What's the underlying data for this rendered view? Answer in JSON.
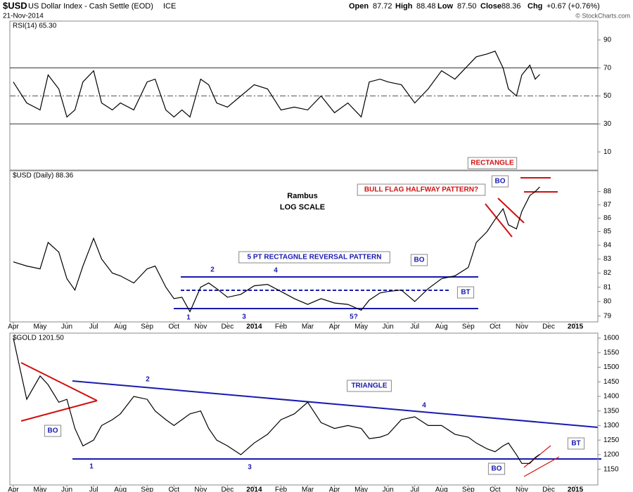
{
  "header": {
    "symbol": "$USD",
    "name": "US Dollar Index - Cash Settle (EOD)",
    "exchange": "ICE",
    "date": "21-Nov-2014",
    "quote": [
      {
        "label": "Open",
        "value": "87.72"
      },
      {
        "label": "High",
        "value": "88.48"
      },
      {
        "label": "Low",
        "value": "87.50"
      },
      {
        "label": "Close",
        "value": "88.36"
      },
      {
        "label": "Chg",
        "value": "+0.67 (+0.76%)"
      }
    ],
    "copyright": "© StockCharts.com"
  },
  "chart_data": [
    {
      "type": "line",
      "title": "RSI(14) 65.30",
      "color": "#000000",
      "x": [
        0,
        0.5,
        1,
        1.3,
        1.7,
        2,
        2.3,
        2.6,
        3,
        3.3,
        3.7,
        4,
        4.5,
        5,
        5.3,
        5.7,
        6,
        6.3,
        6.6,
        7,
        7.3,
        7.6,
        8,
        8.5,
        9,
        9.5,
        10,
        10.5,
        11,
        11.5,
        12,
        12.5,
        13,
        13.3,
        13.7,
        14,
        14.5,
        15,
        15.5,
        16,
        16.5,
        17,
        17.3,
        17.7,
        18,
        18.3,
        18.5,
        18.8,
        19,
        19.3,
        19.5,
        19.67
      ],
      "values": [
        60,
        45,
        40,
        65,
        55,
        35,
        40,
        60,
        68,
        45,
        40,
        45,
        40,
        60,
        62,
        40,
        35,
        40,
        35,
        62,
        58,
        45,
        42,
        50,
        58,
        55,
        40,
        42,
        40,
        50,
        38,
        45,
        35,
        60,
        62,
        60,
        58,
        45,
        55,
        68,
        62,
        72,
        78,
        80,
        82,
        70,
        55,
        50,
        65,
        72,
        62,
        65.3
      ],
      "xlim": [
        -0.13,
        21.84
      ],
      "ylim": [
        -3,
        103.5
      ],
      "yticks": [
        10,
        30,
        50,
        70,
        90
      ],
      "hlines": [
        30,
        50,
        70
      ]
    },
    {
      "type": "line",
      "title": "$USD (Daily) 88.36",
      "color": "#000000",
      "log": true,
      "x": [
        0,
        0.5,
        1,
        1.3,
        1.7,
        2,
        2.3,
        2.6,
        3,
        3.3,
        3.7,
        4,
        4.5,
        5,
        5.3,
        5.7,
        6,
        6.3,
        6.6,
        7,
        7.3,
        7.6,
        8,
        8.5,
        9,
        9.5,
        10,
        10.5,
        11,
        11.5,
        12,
        12.5,
        13,
        13.3,
        13.7,
        14,
        14.5,
        15,
        15.5,
        16,
        16.5,
        17,
        17.3,
        17.7,
        18,
        18.3,
        18.5,
        18.8,
        19,
        19.3,
        19.5,
        19.67
      ],
      "values": [
        82.8,
        82.5,
        82.3,
        84.2,
        83.5,
        81.6,
        80.8,
        82.5,
        84.5,
        83,
        82,
        81.8,
        81.3,
        82.3,
        82.5,
        81,
        80.2,
        80.3,
        79.3,
        81,
        81.3,
        80.9,
        80.3,
        80.5,
        81.1,
        81.2,
        80.7,
        80.2,
        79.8,
        80.2,
        79.9,
        79.8,
        79.4,
        80.1,
        80.6,
        80.7,
        80.8,
        80,
        80.9,
        81.6,
        81.8,
        82.4,
        84.2,
        85,
        85.9,
        86.7,
        85.5,
        85.2,
        86.5,
        87.7,
        88,
        88.36
      ],
      "xlim": [
        -0.13,
        21.84
      ],
      "ylim": [
        78.6,
        89.6
      ],
      "yticks": [
        79,
        80,
        81,
        82,
        83,
        84,
        85,
        86,
        87,
        88
      ],
      "xticks": [
        {
          "value": 0,
          "label": "Apr"
        },
        {
          "value": 1,
          "label": "May"
        },
        {
          "value": 2,
          "label": "Jun"
        },
        {
          "value": 3,
          "label": "Jul"
        },
        {
          "value": 4,
          "label": "Aug"
        },
        {
          "value": 5,
          "label": "Sep"
        },
        {
          "value": 6,
          "label": "Oct"
        },
        {
          "value": 7,
          "label": "Nov"
        },
        {
          "value": 8,
          "label": "Dec"
        },
        {
          "value": 9,
          "label": "2014"
        },
        {
          "value": 10,
          "label": "Feb"
        },
        {
          "value": 11,
          "label": "Mar"
        },
        {
          "value": 12,
          "label": "Apr"
        },
        {
          "value": 13,
          "label": "May"
        },
        {
          "value": 14,
          "label": "Jun"
        },
        {
          "value": 15,
          "label": "Jul"
        },
        {
          "value": 16,
          "label": "Aug"
        },
        {
          "value": 17,
          "label": "Sep"
        },
        {
          "value": 18,
          "label": "Oct"
        },
        {
          "value": 19,
          "label": "Nov"
        },
        {
          "value": 20,
          "label": "Dec"
        },
        {
          "value": 21,
          "label": "2015"
        }
      ],
      "annotations": [
        "Rambus",
        "LOG SCALE",
        "5 PT RECTAGNLE REVERSAL PATTERN",
        "BO",
        "BT",
        "BULL FLAG HALFWAY PATTERN?",
        "BO",
        "RECTANGLE",
        "1",
        "2",
        "3",
        "4",
        "5?"
      ]
    },
    {
      "type": "line",
      "title": "$GOLD 1201.50",
      "color": "#000000",
      "x": [
        0,
        0.5,
        1,
        1.3,
        1.7,
        2,
        2.3,
        2.6,
        3,
        3.3,
        3.7,
        4,
        4.5,
        5,
        5.3,
        5.7,
        6,
        6.3,
        6.6,
        7,
        7.3,
        7.6,
        8,
        8.5,
        9,
        9.5,
        10,
        10.5,
        11,
        11.5,
        12,
        12.5,
        13,
        13.3,
        13.7,
        14,
        14.5,
        15,
        15.5,
        16,
        16.5,
        17,
        17.3,
        17.7,
        18,
        18.3,
        18.5,
        18.8,
        19,
        19.3,
        19.5,
        19.67
      ],
      "values": [
        1600,
        1390,
        1470,
        1440,
        1380,
        1390,
        1290,
        1230,
        1250,
        1300,
        1320,
        1340,
        1400,
        1390,
        1350,
        1320,
        1300,
        1320,
        1340,
        1350,
        1290,
        1250,
        1230,
        1200,
        1240,
        1270,
        1320,
        1340,
        1380,
        1310,
        1290,
        1300,
        1290,
        1255,
        1260,
        1270,
        1320,
        1330,
        1300,
        1300,
        1270,
        1260,
        1240,
        1220,
        1210,
        1230,
        1240,
        1200,
        1170,
        1170,
        1190,
        1201.5
      ],
      "xlim": [
        -0.13,
        21.84
      ],
      "ylim": [
        1096,
        1617
      ],
      "yticks": [
        1150,
        1200,
        1250,
        1300,
        1350,
        1400,
        1450,
        1500,
        1550,
        1600
      ],
      "xticks": [
        {
          "value": 0,
          "label": "Apr"
        },
        {
          "value": 1,
          "label": "May"
        },
        {
          "value": 2,
          "label": "Jun"
        },
        {
          "value": 3,
          "label": "Jul"
        },
        {
          "value": 4,
          "label": "Aug"
        },
        {
          "value": 5,
          "label": "Sep"
        },
        {
          "value": 6,
          "label": "Oct"
        },
        {
          "value": 7,
          "label": "Nov"
        },
        {
          "value": 8,
          "label": "Dec"
        },
        {
          "value": 9,
          "label": "2014"
        },
        {
          "value": 10,
          "label": "Feb"
        },
        {
          "value": 11,
          "label": "Mar"
        },
        {
          "value": 12,
          "label": "Apr"
        },
        {
          "value": 13,
          "label": "May"
        },
        {
          "value": 14,
          "label": "Jun"
        },
        {
          "value": 15,
          "label": "Jul"
        },
        {
          "value": 16,
          "label": "Aug"
        },
        {
          "value": 17,
          "label": "Sep"
        },
        {
          "value": 18,
          "label": "Oct"
        },
        {
          "value": 19,
          "label": "Nov"
        },
        {
          "value": 20,
          "label": "Dec"
        },
        {
          "value": 21,
          "label": "2015"
        }
      ],
      "annotations": [
        "TRIANGLE",
        "BO",
        "1",
        "2",
        "3",
        "4",
        "BO",
        "BT"
      ]
    }
  ]
}
